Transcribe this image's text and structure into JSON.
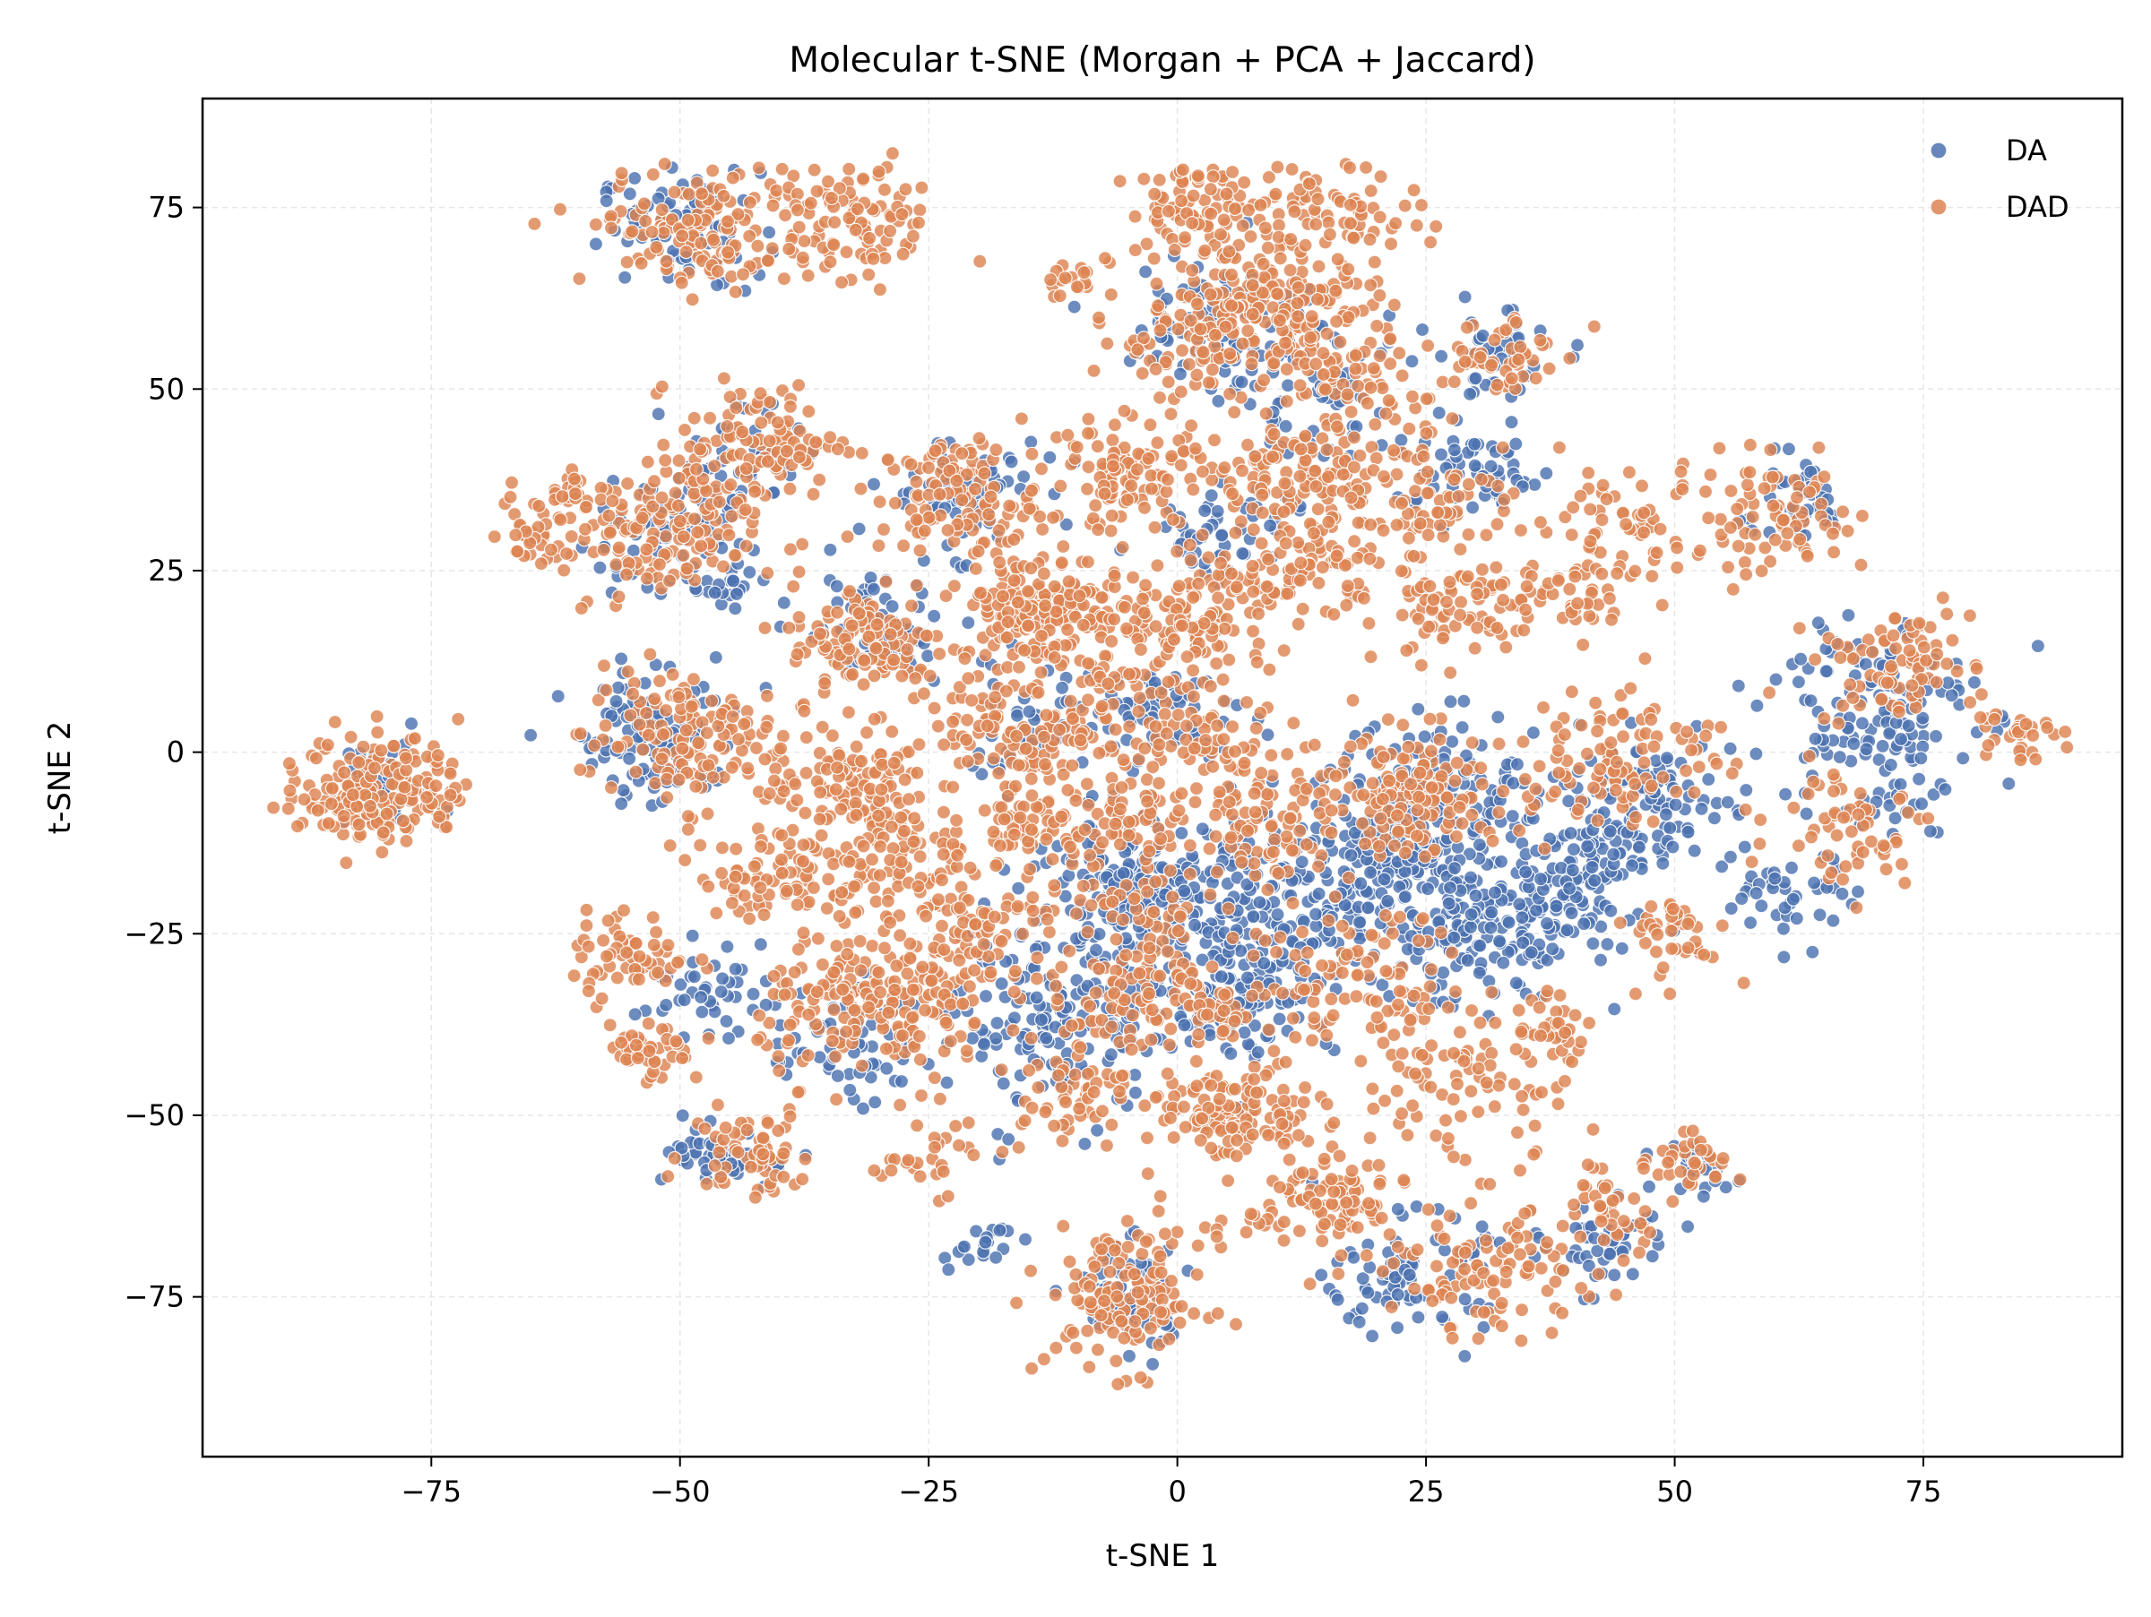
{
  "chart_data": {
    "type": "scatter",
    "title": "Molecular t-SNE (Morgan + PCA + Jaccard)",
    "xlabel": "t-SNE 1",
    "ylabel": "t-SNE 2",
    "xlim": [
      -98,
      95
    ],
    "ylim": [
      -97,
      90
    ],
    "xticks": [
      -75,
      -50,
      -25,
      0,
      25,
      50,
      75
    ],
    "yticks": [
      -75,
      -50,
      -25,
      0,
      25,
      50,
      75
    ],
    "xtick_labels": [
      "−75",
      "−50",
      "−25",
      "0",
      "25",
      "50",
      "75"
    ],
    "ytick_labels": [
      "−75",
      "−50",
      "−25",
      "0",
      "25",
      "50",
      "75"
    ],
    "grid": true,
    "legend_position": "top-right",
    "series": [
      {
        "name": "DA",
        "color": "#4c72b0",
        "clusters": [
          [
            -80,
            -5,
            3,
            3,
            30
          ],
          [
            -50,
            72,
            4,
            4,
            70
          ],
          [
            -52,
            3,
            4,
            5,
            110
          ],
          [
            -52,
            30,
            4,
            5,
            60
          ],
          [
            -44,
            40,
            3,
            4,
            40
          ],
          [
            -30,
            17,
            4,
            4,
            70
          ],
          [
            -22,
            36,
            4,
            4,
            60
          ],
          [
            -15,
            3,
            4,
            4,
            50
          ],
          [
            -12,
            -38,
            5,
            6,
            150
          ],
          [
            -3,
            -20,
            6,
            5,
            220
          ],
          [
            6,
            -32,
            5,
            5,
            140
          ],
          [
            15,
            -20,
            6,
            6,
            170
          ],
          [
            25,
            -15,
            6,
            6,
            150
          ],
          [
            32,
            -25,
            5,
            5,
            150
          ],
          [
            27,
            -5,
            6,
            5,
            90
          ],
          [
            5,
            60,
            5,
            5,
            80
          ],
          [
            14,
            48,
            5,
            5,
            60
          ],
          [
            30,
            38,
            4,
            3,
            60
          ],
          [
            46,
            -8,
            5,
            5,
            120
          ],
          [
            70,
            5,
            5,
            8,
            150
          ],
          [
            62,
            35,
            3,
            3,
            40
          ],
          [
            62,
            -20,
            3,
            3,
            40
          ],
          [
            -45,
            -56,
            3,
            2,
            50
          ],
          [
            23,
            -72,
            4,
            4,
            80
          ],
          [
            43,
            -68,
            3,
            3,
            50
          ],
          [
            -5,
            -75,
            3,
            4,
            60
          ],
          [
            -45,
            23,
            2,
            2,
            20
          ],
          [
            -20,
            -68,
            2,
            2,
            20
          ],
          [
            5,
            30,
            4,
            3,
            50
          ],
          [
            -2,
            5,
            5,
            4,
            60
          ],
          [
            32,
            55,
            3,
            3,
            40
          ],
          [
            52,
            -58,
            2,
            2,
            20
          ],
          [
            40,
            -18,
            3,
            4,
            60
          ],
          [
            -33,
            -40,
            4,
            4,
            60
          ],
          [
            -48,
            -33,
            3,
            3,
            40
          ]
        ]
      },
      {
        "name": "DAD",
        "color": "#dd8452",
        "clusters": [
          [
            -80,
            -5,
            4,
            4,
            190
          ],
          [
            -47,
            72,
            6,
            4,
            150
          ],
          [
            -32,
            73,
            4,
            4,
            90
          ],
          [
            -52,
            30,
            5,
            5,
            160
          ],
          [
            -42,
            43,
            4,
            4,
            100
          ],
          [
            -31,
            15,
            4,
            4,
            120
          ],
          [
            -14,
            20,
            4,
            4,
            180
          ],
          [
            -22,
            35,
            4,
            4,
            120
          ],
          [
            -50,
            2,
            5,
            5,
            140
          ],
          [
            -33,
            -5,
            4,
            4,
            120
          ],
          [
            -15,
            3,
            5,
            4,
            120
          ],
          [
            -40,
            -17,
            4,
            3,
            80
          ],
          [
            -28,
            -15,
            4,
            4,
            80
          ],
          [
            -55,
            -28,
            3,
            3,
            60
          ],
          [
            -53,
            -42,
            2,
            2,
            40
          ],
          [
            -30,
            -35,
            6,
            5,
            200
          ],
          [
            -43,
            -55,
            3,
            3,
            60
          ],
          [
            -10,
            -45,
            4,
            4,
            70
          ],
          [
            -5,
            -75,
            4,
            5,
            140
          ],
          [
            6,
            -50,
            4,
            3,
            120
          ],
          [
            15,
            -62,
            4,
            4,
            100
          ],
          [
            28,
            -45,
            6,
            6,
            100
          ],
          [
            32,
            -72,
            5,
            4,
            100
          ],
          [
            44,
            -62,
            3,
            3,
            40
          ],
          [
            52,
            -56,
            2,
            2,
            30
          ],
          [
            3,
            75,
            4,
            3,
            90
          ],
          [
            17,
            75,
            4,
            3,
            60
          ],
          [
            10,
            63,
            5,
            5,
            150
          ],
          [
            2,
            57,
            5,
            4,
            90
          ],
          [
            15,
            50,
            5,
            5,
            100
          ],
          [
            -10,
            65,
            2,
            2,
            20
          ],
          [
            -5,
            38,
            4,
            4,
            100
          ],
          [
            12,
            38,
            6,
            4,
            120
          ],
          [
            26,
            35,
            5,
            4,
            70
          ],
          [
            2,
            18,
            4,
            4,
            100
          ],
          [
            12,
            25,
            4,
            3,
            80
          ],
          [
            -5,
            10,
            4,
            4,
            60
          ],
          [
            3,
            0,
            5,
            4,
            80
          ],
          [
            28,
            20,
            4,
            4,
            80
          ],
          [
            38,
            20,
            3,
            3,
            40
          ],
          [
            25,
            -5,
            5,
            4,
            100
          ],
          [
            45,
            0,
            5,
            5,
            100
          ],
          [
            45,
            30,
            4,
            4,
            60
          ],
          [
            60,
            32,
            5,
            4,
            80
          ],
          [
            72,
            12,
            4,
            4,
            80
          ],
          [
            68,
            -10,
            4,
            4,
            60
          ],
          [
            84,
            3,
            2,
            2,
            30
          ],
          [
            32,
            55,
            3,
            3,
            50
          ],
          [
            -5,
            -25,
            5,
            6,
            80
          ],
          [
            4,
            -35,
            6,
            4,
            120
          ],
          [
            -20,
            -25,
            4,
            4,
            80
          ],
          [
            -15,
            -10,
            3,
            3,
            60
          ],
          [
            38,
            -38,
            2,
            2,
            30
          ],
          [
            10,
            -10,
            4,
            4,
            80
          ],
          [
            50,
            -25,
            3,
            3,
            40
          ],
          [
            -62,
            35,
            2,
            2,
            25
          ],
          [
            -65,
            30,
            2,
            2,
            25
          ],
          [
            -5,
            -10,
            4,
            3,
            60
          ],
          [
            20,
            -30,
            4,
            4,
            60
          ],
          [
            -25,
            -55,
            3,
            3,
            30
          ],
          [
            22,
            -8,
            3,
            3,
            40
          ]
        ]
      }
    ]
  }
}
